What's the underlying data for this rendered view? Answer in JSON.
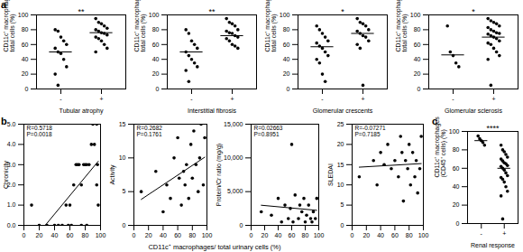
{
  "chart_data": [
    {
      "type": "strip",
      "panel": "a",
      "categories": [
        "-",
        "+"
      ],
      "xlabel": "Tubular atrophy",
      "ylabel": "CD11c⁺ macrophages / total cells (%)",
      "ylim": [
        0,
        100
      ],
      "yticks": [
        0,
        20,
        40,
        60,
        80,
        100
      ],
      "groups": [
        [
          80,
          78,
          70,
          65,
          60,
          55,
          50,
          48,
          40,
          30,
          20,
          5
        ],
        [
          95,
          90,
          88,
          85,
          82,
          80,
          78,
          76,
          75,
          73,
          70,
          68,
          65,
          60,
          55,
          50
        ]
      ],
      "means": [
        50,
        76
      ],
      "annotation": "**",
      "color": "#000000"
    },
    {
      "type": "strip",
      "categories": [
        "-",
        "+"
      ],
      "xlabel": "Interstitial fibrosis",
      "ylabel": "CD11c⁺ macrophages / total cells (%)",
      "ylim": [
        0,
        100
      ],
      "yticks": [
        0,
        20,
        40,
        60,
        80,
        100
      ],
      "groups": [
        [
          80,
          75,
          65,
          60,
          55,
          50,
          45,
          40,
          35,
          30,
          25,
          10
        ],
        [
          95,
          90,
          88,
          85,
          80,
          78,
          76,
          75,
          72,
          70,
          68,
          65,
          60,
          58,
          55
        ]
      ],
      "means": [
        50,
        72
      ],
      "annotation": "**",
      "color": "#000000"
    },
    {
      "type": "strip",
      "categories": [
        "-",
        "+"
      ],
      "xlabel": "Glomerular crescents",
      "ylabel": "CD11c⁺ macrophages / total cells (%)",
      "ylim": [
        0,
        100
      ],
      "yticks": [
        0,
        20,
        40,
        60,
        80,
        100
      ],
      "groups": [
        [
          85,
          80,
          75,
          70,
          65,
          62,
          58,
          55,
          50,
          45,
          40,
          35,
          20,
          10
        ],
        [
          95,
          90,
          88,
          85,
          80,
          78,
          75,
          72,
          70,
          65,
          60,
          55,
          5
        ]
      ],
      "means": [
        57,
        75
      ],
      "annotation": "*",
      "color": "#000000"
    },
    {
      "type": "strip",
      "categories": [
        "-",
        "+"
      ],
      "xlabel": "Glomerular sclerosis",
      "ylabel": "CD11c⁺ macrophages / total cells (%)",
      "ylim": [
        0,
        100
      ],
      "yticks": [
        0,
        20,
        40,
        60,
        80,
        100
      ],
      "groups": [
        [
          85,
          50,
          45,
          35,
          30
        ],
        [
          95,
          92,
          90,
          88,
          85,
          83,
          80,
          78,
          76,
          75,
          74,
          72,
          70,
          68,
          65,
          62,
          60,
          55,
          50,
          45,
          40,
          5
        ]
      ],
      "means": [
        46,
        70
      ],
      "annotation": "*",
      "color": "#000000"
    },
    {
      "type": "scatter",
      "panel": "b",
      "xlabel": "CD11c⁺ macrophages/ total urinary cells (%)",
      "ylabel": "Chronicity",
      "xlim": [
        0,
        100
      ],
      "xticks": [
        0,
        20,
        40,
        60,
        80,
        100
      ],
      "ylim": [
        0,
        5
      ],
      "yticks": [
        0,
        1,
        2,
        3,
        4,
        5
      ],
      "x": [
        10,
        20,
        30,
        40,
        45,
        50,
        55,
        58,
        60,
        62,
        65,
        68,
        70,
        72,
        75,
        75,
        78,
        80,
        82,
        82,
        85,
        88,
        90,
        92,
        95,
        95,
        96,
        97
      ],
      "y": [
        1,
        0,
        0,
        0,
        0,
        0,
        1,
        0,
        1,
        0,
        2,
        3,
        3,
        3,
        0,
        2,
        3,
        3,
        0,
        3,
        3,
        4,
        5,
        4,
        5,
        2,
        3,
        1
      ],
      "annotations": [
        "R=0.5718",
        "P=0.0018"
      ],
      "color": "#000000"
    },
    {
      "type": "scatter",
      "ylabel": "Activity",
      "xlim": [
        0,
        100
      ],
      "xticks": [
        0,
        20,
        40,
        60,
        80,
        100
      ],
      "ylim": [
        0,
        15
      ],
      "yticks": [
        0,
        5,
        10,
        15
      ],
      "x": [
        10,
        30,
        40,
        45,
        50,
        55,
        60,
        62,
        65,
        68,
        70,
        72,
        75,
        78,
        80,
        82,
        85,
        88,
        90,
        92,
        95,
        97
      ],
      "y": [
        5,
        8,
        2,
        6,
        4,
        10,
        13,
        7,
        3,
        8,
        6,
        9,
        4,
        12,
        7,
        14,
        9,
        5,
        10,
        15,
        6,
        13
      ],
      "annotations": [
        "R=0.2682",
        "P=0.1761"
      ],
      "color": "#000000"
    },
    {
      "type": "scatter",
      "ylabel": "Protein/Cr ratio (mg/g)",
      "xlim": [
        0,
        100
      ],
      "xticks": [
        0,
        20,
        40,
        60,
        80,
        100
      ],
      "ylim": [
        0,
        15000
      ],
      "yticks": [
        0,
        5000,
        10000,
        15000
      ],
      "x": [
        15,
        30,
        40,
        45,
        50,
        55,
        58,
        60,
        62,
        65,
        70,
        72,
        75,
        78,
        80,
        82,
        85,
        88,
        90,
        92,
        95,
        97
      ],
      "y": [
        2000,
        1500,
        4000,
        500,
        3000,
        1000,
        2500,
        12000,
        500,
        4500,
        1000,
        3000,
        2000,
        4000,
        500,
        1500,
        3000,
        1000,
        500,
        2000,
        1000,
        4000
      ],
      "annotations": [
        "R=0.02663",
        "P=0.8951"
      ],
      "color": "#000000"
    },
    {
      "type": "scatter",
      "ylabel": "SLEDAI",
      "xlim": [
        0,
        100
      ],
      "xticks": [
        0,
        20,
        40,
        60,
        80,
        100
      ],
      "ylim": [
        0,
        25
      ],
      "yticks": [
        0,
        5,
        10,
        15,
        20,
        25
      ],
      "x": [
        10,
        30,
        35,
        40,
        45,
        50,
        55,
        60,
        65,
        68,
        70,
        72,
        75,
        78,
        80,
        82,
        85,
        88,
        90,
        92,
        95,
        97
      ],
      "y": [
        12,
        16,
        10,
        18,
        15,
        20,
        14,
        16,
        12,
        22,
        18,
        6,
        16,
        14,
        20,
        10,
        18,
        12,
        16,
        8,
        14,
        22
      ],
      "annotations": [
        "R=-0.07271",
        "P=0.7185"
      ],
      "color": "#000000"
    },
    {
      "type": "strip",
      "panel": "c",
      "categories": [
        "-",
        "+"
      ],
      "xlabel": "Renal response",
      "ylabel": "CD11c⁺ macrophages (CD45⁺ cells) (%)",
      "ylim": [
        0,
        100
      ],
      "yticks": [
        0,
        20,
        40,
        60,
        80,
        100
      ],
      "groups": [
        [
          95,
          92,
          90,
          88,
          85
        ],
        [
          85,
          80,
          78,
          75,
          72,
          70,
          68,
          66,
          65,
          63,
          62,
          60,
          58,
          55,
          52,
          50,
          48,
          45,
          40,
          35,
          30,
          5
        ]
      ],
      "means": [
        90,
        60
      ],
      "annotation": "****",
      "color": "#000000"
    }
  ]
}
